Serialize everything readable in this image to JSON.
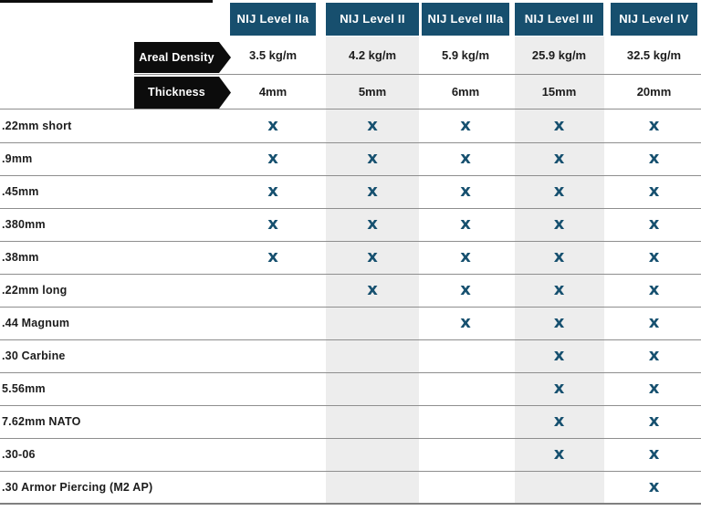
{
  "colors": {
    "header_blue": "#174f6e",
    "x_mark_blue": "#16506f",
    "stripe_gray": "#ededed",
    "pennant_black": "#0c0c0c",
    "rule_gray": "#8e8e8e"
  },
  "spec_labels": {
    "areal_density": "Areal Density",
    "thickness": "Thickness"
  },
  "columns": [
    {
      "label": "NIJ Level IIa",
      "areal_density": "3.5 kg/m",
      "thickness": "4mm"
    },
    {
      "label": "NIJ Level II",
      "areal_density": "4.2 kg/m",
      "thickness": "5mm"
    },
    {
      "label": "NIJ Level IIIa",
      "areal_density": "5.9 kg/m",
      "thickness": "6mm"
    },
    {
      "label": "NIJ Level III",
      "areal_density": "25.9 kg/m",
      "thickness": "15mm"
    },
    {
      "label": "NIJ Level IV",
      "areal_density": "32.5 kg/m",
      "thickness": "20mm"
    }
  ],
  "x_mark_glyph": "x",
  "rows": [
    {
      "label": ".22mm short",
      "stopped": [
        true,
        true,
        true,
        true,
        true
      ]
    },
    {
      "label": ".9mm",
      "stopped": [
        true,
        true,
        true,
        true,
        true
      ]
    },
    {
      "label": ".45mm",
      "stopped": [
        true,
        true,
        true,
        true,
        true
      ]
    },
    {
      "label": ".380mm",
      "stopped": [
        true,
        true,
        true,
        true,
        true
      ]
    },
    {
      "label": ".38mm",
      "stopped": [
        true,
        true,
        true,
        true,
        true
      ]
    },
    {
      "label": ".22mm long",
      "stopped": [
        false,
        true,
        true,
        true,
        true
      ]
    },
    {
      "label": ".44 Magnum",
      "stopped": [
        false,
        false,
        true,
        true,
        true
      ]
    },
    {
      "label": ".30 Carbine",
      "stopped": [
        false,
        false,
        false,
        true,
        true
      ]
    },
    {
      "label": "5.56mm",
      "stopped": [
        false,
        false,
        false,
        true,
        true
      ]
    },
    {
      "label": "7.62mm NATO",
      "stopped": [
        false,
        false,
        false,
        true,
        true
      ]
    },
    {
      "label": ".30-06",
      "stopped": [
        false,
        false,
        false,
        true,
        true
      ]
    },
    {
      "label": ".30 Armor Piercing (M2 AP)",
      "stopped": [
        false,
        false,
        false,
        false,
        true
      ]
    }
  ],
  "chart_data": {
    "type": "table",
    "columns": [
      "NIJ Level IIa",
      "NIJ Level II",
      "NIJ Level IIIa",
      "NIJ Level III",
      "NIJ Level IV"
    ],
    "areal_density": [
      "3.5 kg/m",
      "4.2 kg/m",
      "5.9 kg/m",
      "25.9 kg/m",
      "32.5 kg/m"
    ],
    "thickness": [
      "4mm",
      "5mm",
      "6mm",
      "15mm",
      "20mm"
    ],
    "row_header_labels": [
      "Areal Density",
      "Thickness"
    ],
    "ammunition_rows": [
      {
        "ammunition": ".22mm short",
        "stopped_by_level": [
          true,
          true,
          true,
          true,
          true
        ]
      },
      {
        "ammunition": ".9mm",
        "stopped_by_level": [
          true,
          true,
          true,
          true,
          true
        ]
      },
      {
        "ammunition": ".45mm",
        "stopped_by_level": [
          true,
          true,
          true,
          true,
          true
        ]
      },
      {
        "ammunition": ".380mm",
        "stopped_by_level": [
          true,
          true,
          true,
          true,
          true
        ]
      },
      {
        "ammunition": ".38mm",
        "stopped_by_level": [
          true,
          true,
          true,
          true,
          true
        ]
      },
      {
        "ammunition": ".22mm long",
        "stopped_by_level": [
          false,
          true,
          true,
          true,
          true
        ]
      },
      {
        "ammunition": ".44 Magnum",
        "stopped_by_level": [
          false,
          false,
          true,
          true,
          true
        ]
      },
      {
        "ammunition": ".30 Carbine",
        "stopped_by_level": [
          false,
          false,
          false,
          true,
          true
        ]
      },
      {
        "ammunition": "5.56mm",
        "stopped_by_level": [
          false,
          false,
          false,
          true,
          true
        ]
      },
      {
        "ammunition": "7.62mm NATO",
        "stopped_by_level": [
          false,
          false,
          false,
          true,
          true
        ]
      },
      {
        "ammunition": ".30-06",
        "stopped_by_level": [
          false,
          false,
          false,
          true,
          true
        ]
      },
      {
        "ammunition": ".30 Armor Piercing (M2 AP)",
        "stopped_by_level": [
          false,
          false,
          false,
          false,
          true
        ]
      }
    ],
    "cell_mark": "x",
    "striped_columns": [
      "NIJ Level II",
      "NIJ Level III"
    ]
  }
}
